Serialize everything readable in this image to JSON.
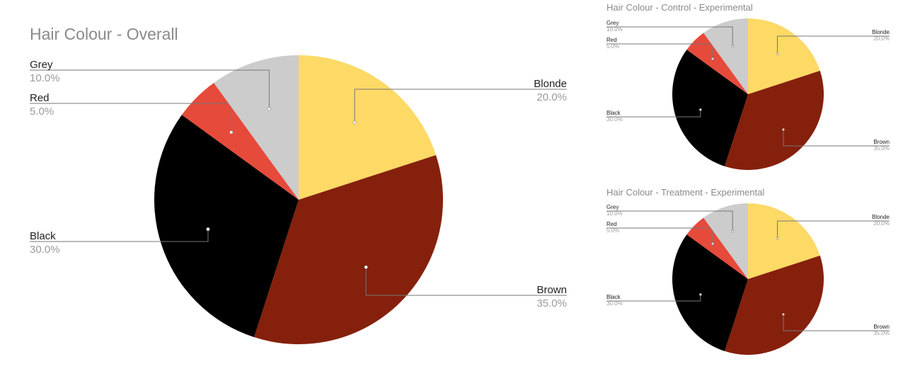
{
  "chart_data": [
    {
      "type": "pie",
      "title": "Hair Colour - Overall",
      "categories": [
        "Blonde",
        "Brown",
        "Black",
        "Red",
        "Grey"
      ],
      "values": [
        20.0,
        35.0,
        30.0,
        5.0,
        10.0
      ],
      "labels": [
        "20.0%",
        "35.0%",
        "30.0%",
        "5.0%",
        "10.0%"
      ],
      "colors": [
        "#fdd966",
        "#85200c",
        "#000000",
        "#e64a3b",
        "#cccccc"
      ]
    },
    {
      "type": "pie",
      "title": "Hair Colour - Control - Experimental",
      "categories": [
        "Blonde",
        "Brown",
        "Black",
        "Red",
        "Grey"
      ],
      "values": [
        20.0,
        35.0,
        30.0,
        5.0,
        10.0
      ],
      "labels": [
        "20.0%",
        "35.0%",
        "30.0%",
        "5.0%",
        "10.0%"
      ],
      "colors": [
        "#fdd966",
        "#85200c",
        "#000000",
        "#e64a3b",
        "#cccccc"
      ]
    },
    {
      "type": "pie",
      "title": "Hair Colour - Treatment - Experimental",
      "categories": [
        "Blonde",
        "Brown",
        "Black",
        "Red",
        "Grey"
      ],
      "values": [
        20.0,
        35.0,
        30.0,
        5.0,
        10.0
      ],
      "labels": [
        "20.0%",
        "35.0%",
        "30.0%",
        "5.0%",
        "10.0%"
      ],
      "colors": [
        "#fdd966",
        "#85200c",
        "#000000",
        "#e64a3b",
        "#cccccc"
      ]
    }
  ]
}
